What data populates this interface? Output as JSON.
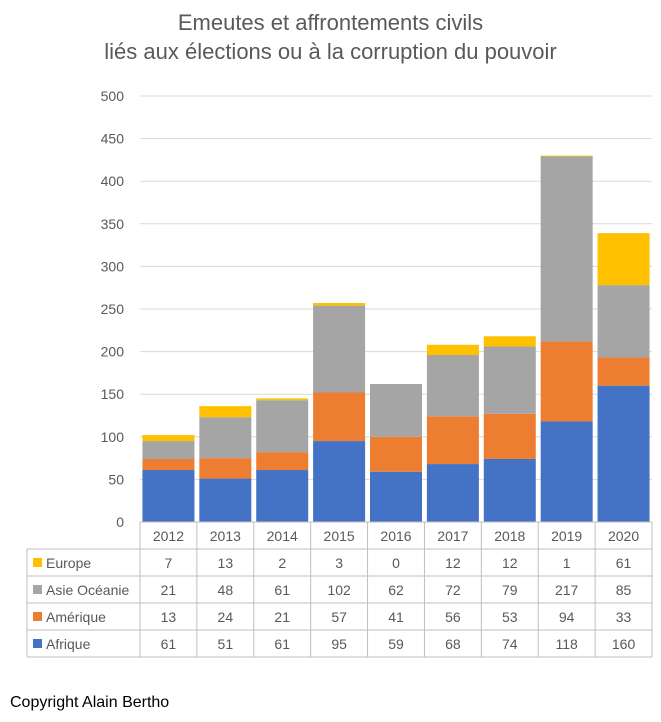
{
  "chart_data": {
    "type": "bar",
    "stacked": true,
    "title": [
      "Emeutes et affrontements civils",
      "liés aux élections ou à la corruption du pouvoir"
    ],
    "categories": [
      "2012",
      "2013",
      "2014",
      "2015",
      "2016",
      "2017",
      "2018",
      "2019",
      "2020"
    ],
    "series": [
      {
        "name": "Afrique",
        "color": "#4472C4",
        "values": [
          61,
          51,
          61,
          95,
          59,
          68,
          74,
          118,
          160
        ]
      },
      {
        "name": "Amérique",
        "color": "#ED7D31",
        "values": [
          13,
          24,
          21,
          57,
          41,
          56,
          53,
          94,
          33
        ]
      },
      {
        "name": "Asie Océanie",
        "color": "#A5A5A5",
        "values": [
          21,
          48,
          61,
          102,
          62,
          72,
          79,
          217,
          85
        ]
      },
      {
        "name": "Europe",
        "color": "#FFC000",
        "values": [
          7,
          13,
          2,
          3,
          0,
          12,
          12,
          1,
          61
        ]
      }
    ],
    "table_row_order": [
      "Europe",
      "Asie Océanie",
      "Amérique",
      "Afrique"
    ],
    "ylim": [
      0,
      500
    ],
    "yticks": [
      0,
      50,
      100,
      150,
      200,
      250,
      300,
      350,
      400,
      450,
      500
    ],
    "grid": true,
    "legend": "data table below chart"
  },
  "footer": {
    "copyright": "Copyright Alain Bertho"
  }
}
